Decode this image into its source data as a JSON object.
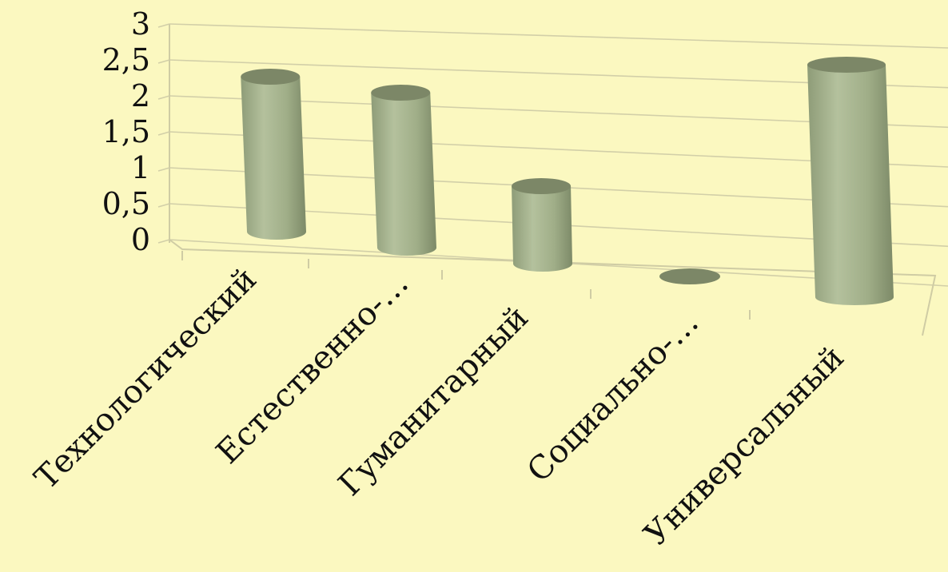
{
  "chart_data": {
    "type": "bar",
    "style": "3d-cylinder",
    "categories": [
      "Технологический",
      "Естественно-…",
      "Гуманитарный",
      "Социально-…",
      "Универсальный"
    ],
    "series": [
      {
        "values": [
          2,
          2,
          1,
          0,
          3
        ]
      }
    ],
    "ylim": [
      0,
      3
    ],
    "yticks": [
      "0",
      "0,5",
      "1",
      "1,5",
      "2",
      "2,5",
      "3"
    ],
    "ytick_values": [
      0,
      0.5,
      1,
      1.5,
      2,
      2.5,
      3
    ],
    "grid": true,
    "legend": "none",
    "colors": {
      "background": "#fbf8c0",
      "bar": "#9aa984",
      "bar_top": "#7c8767",
      "grid": "#d2cfa8"
    }
  }
}
